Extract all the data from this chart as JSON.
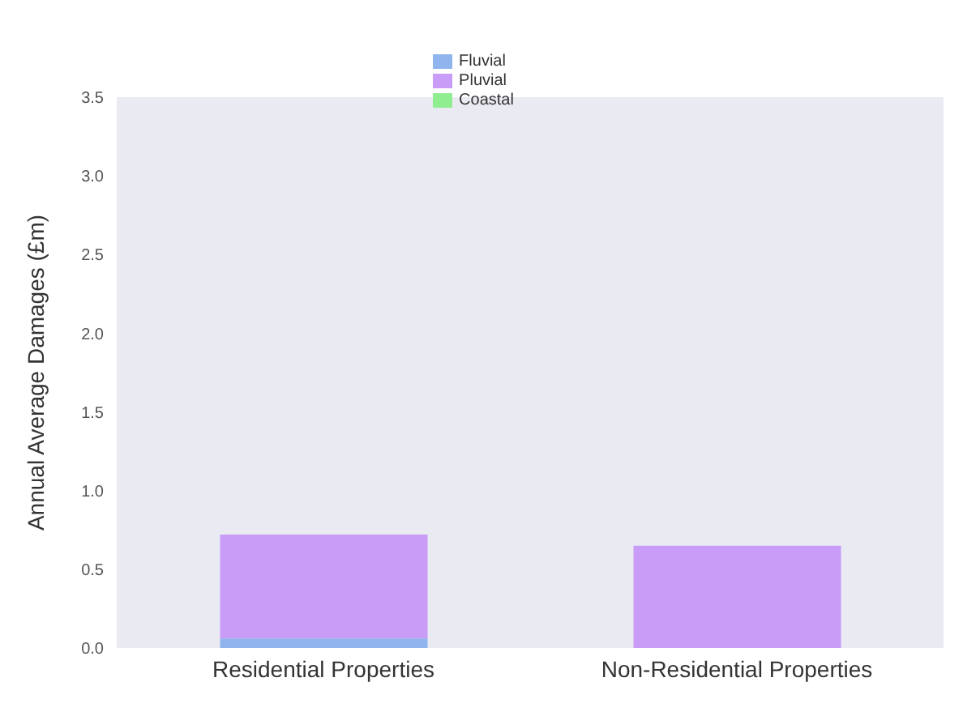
{
  "chart_data": {
    "type": "bar",
    "ylabel": "Annual Average Damages (£m)",
    "categories": [
      "Residential Properties",
      "Non-Residential Properties"
    ],
    "stacked": true,
    "series": [
      {
        "name": "Fluvial",
        "color": "#8fb4ee",
        "values": [
          0.06,
          0
        ]
      },
      {
        "name": "Pluvial",
        "color": "#c89cf7",
        "values": [
          0.66,
          0.65
        ]
      },
      {
        "name": "Coastal",
        "color": "#90ee90",
        "values": [
          0,
          0
        ]
      }
    ],
    "ylim": [
      0,
      3.5
    ],
    "yticks": [
      {
        "value": 0,
        "label": "0.0"
      },
      {
        "value": 0.5,
        "label": "0.5"
      },
      {
        "value": 1,
        "label": "1.0"
      },
      {
        "value": 1.5,
        "label": "1.5"
      },
      {
        "value": 2,
        "label": "2.0"
      },
      {
        "value": 2.5,
        "label": "2.5"
      },
      {
        "value": 3,
        "label": "3.0"
      },
      {
        "value": 3.5,
        "label": "3.5"
      }
    ],
    "grid": false,
    "legend": "top"
  }
}
